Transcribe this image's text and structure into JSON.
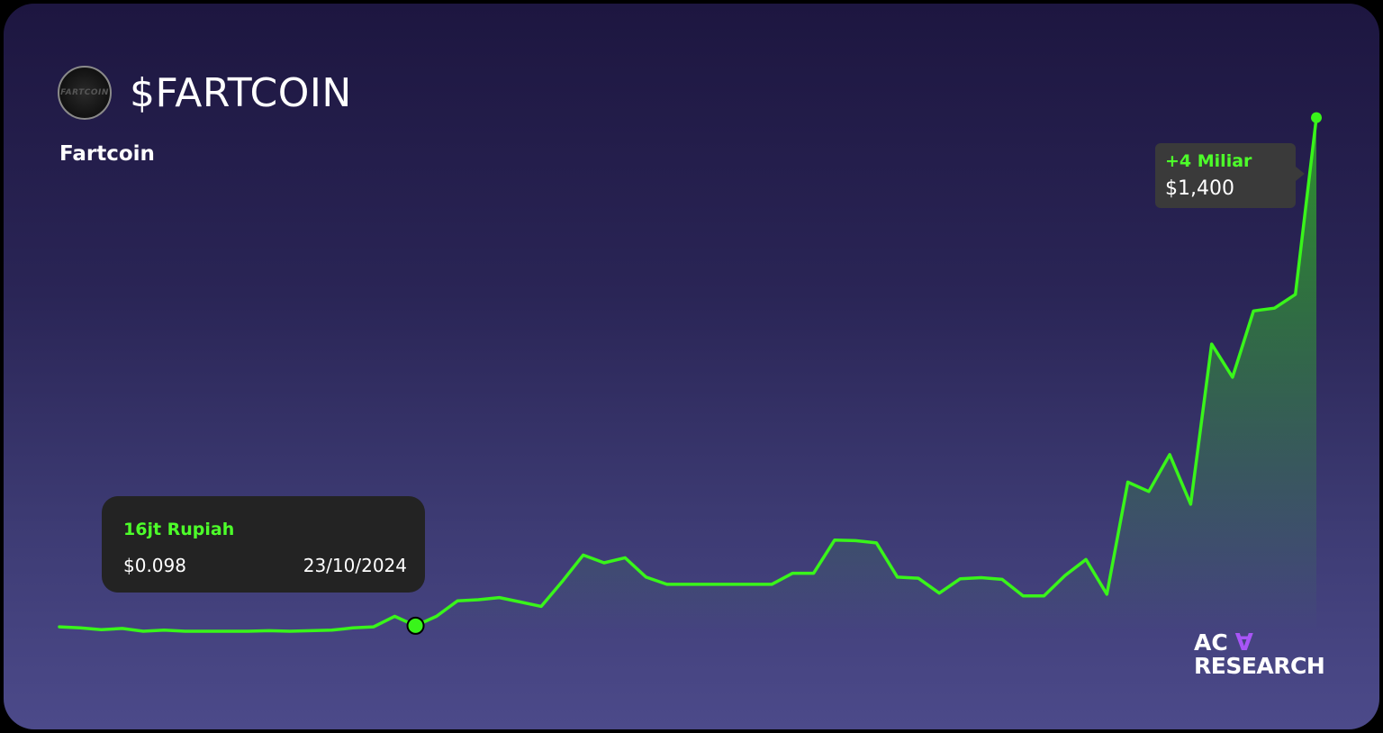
{
  "header": {
    "ticker": "$FARTCOIN",
    "name": "Fartcoin",
    "logo_text": "FARTCOIN"
  },
  "tooltip_start": {
    "label": "16jt Rupiah",
    "price": "$0.098",
    "date": "23/10/2024"
  },
  "tooltip_end": {
    "label": "+4 Miliar",
    "price": "$1,400"
  },
  "brand": {
    "line1": "AC",
    "mark": "∀",
    "line2": "RESEARCH"
  },
  "colors": {
    "line": "#39f51a",
    "label_green": "#4dff2a",
    "brand_mark": "#a855f7"
  },
  "chart_data": {
    "type": "line",
    "title": "",
    "xlabel": "",
    "ylabel": "",
    "grid": false,
    "legend": "none",
    "ylim": [
      0,
      11.3
    ],
    "y": [
      0.08,
      0.06,
      0.03,
      0.05,
      0.0,
      0.02,
      0.0,
      0.0,
      0.0,
      0.0,
      0.01,
      0.0,
      0.01,
      0.02,
      0.06,
      0.08,
      0.27,
      0.1,
      0.27,
      0.55,
      0.57,
      0.61,
      0.53,
      0.45,
      0.9,
      1.38,
      1.24,
      1.33,
      0.98,
      0.85,
      0.85,
      0.85,
      0.85,
      0.85,
      0.85,
      1.05,
      1.05,
      1.65,
      1.64,
      1.6,
      0.98,
      0.96,
      0.69,
      0.95,
      0.97,
      0.94,
      0.64,
      0.64,
      1.01,
      1.3,
      0.67,
      2.7,
      2.53,
      3.2,
      2.3,
      5.2,
      4.6,
      5.8,
      5.85,
      6.1,
      9.3
    ]
  }
}
